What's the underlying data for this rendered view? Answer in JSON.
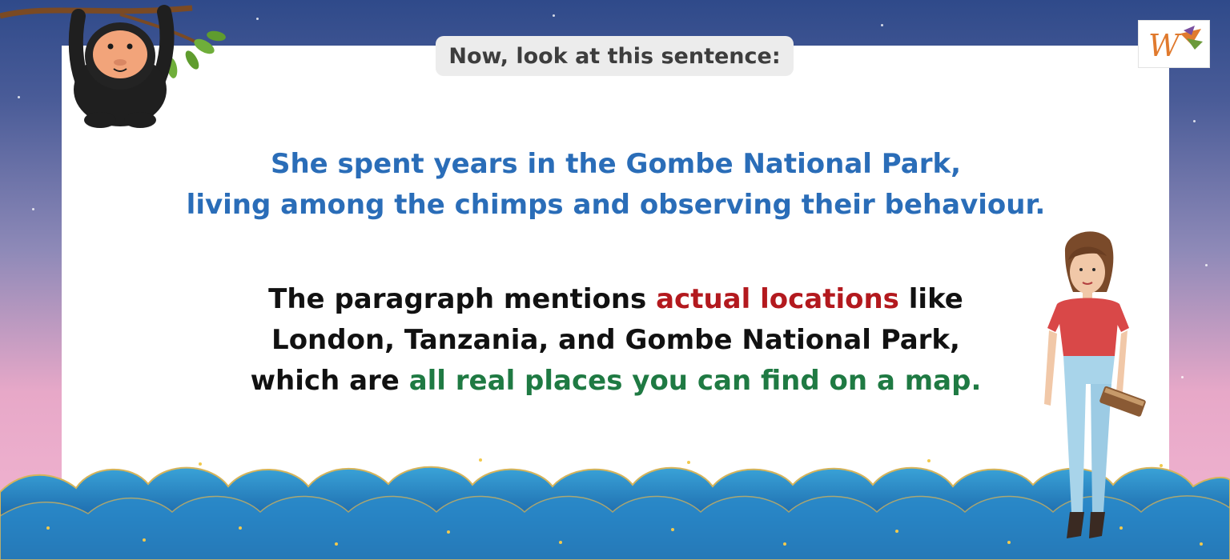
{
  "header": {
    "prompt_label": "Now, look at this sentence:"
  },
  "sentence": {
    "line1": "She spent years in the Gombe National Park,",
    "line2": "living among the chimps and observing their behaviour."
  },
  "paragraph": {
    "l1_a": "The paragraph mentions ",
    "l1_highlight": "actual locations",
    "l1_b": " like",
    "l2": "London, Tanzania, and Gombe National Park,",
    "l3_a": "which are ",
    "l3_highlight": "all real places you can find on a map."
  },
  "logo": {
    "letter": "W"
  },
  "colors": {
    "sentence_blue": "#2a6db8",
    "highlight_red": "#b3191e",
    "highlight_green": "#1f7a43",
    "sky_top": "#2f4a8a",
    "sky_bottom": "#f3b6d2"
  },
  "icons": [
    "monkey-illustration",
    "woman-illustration",
    "cloud-border",
    "brand-logo"
  ]
}
